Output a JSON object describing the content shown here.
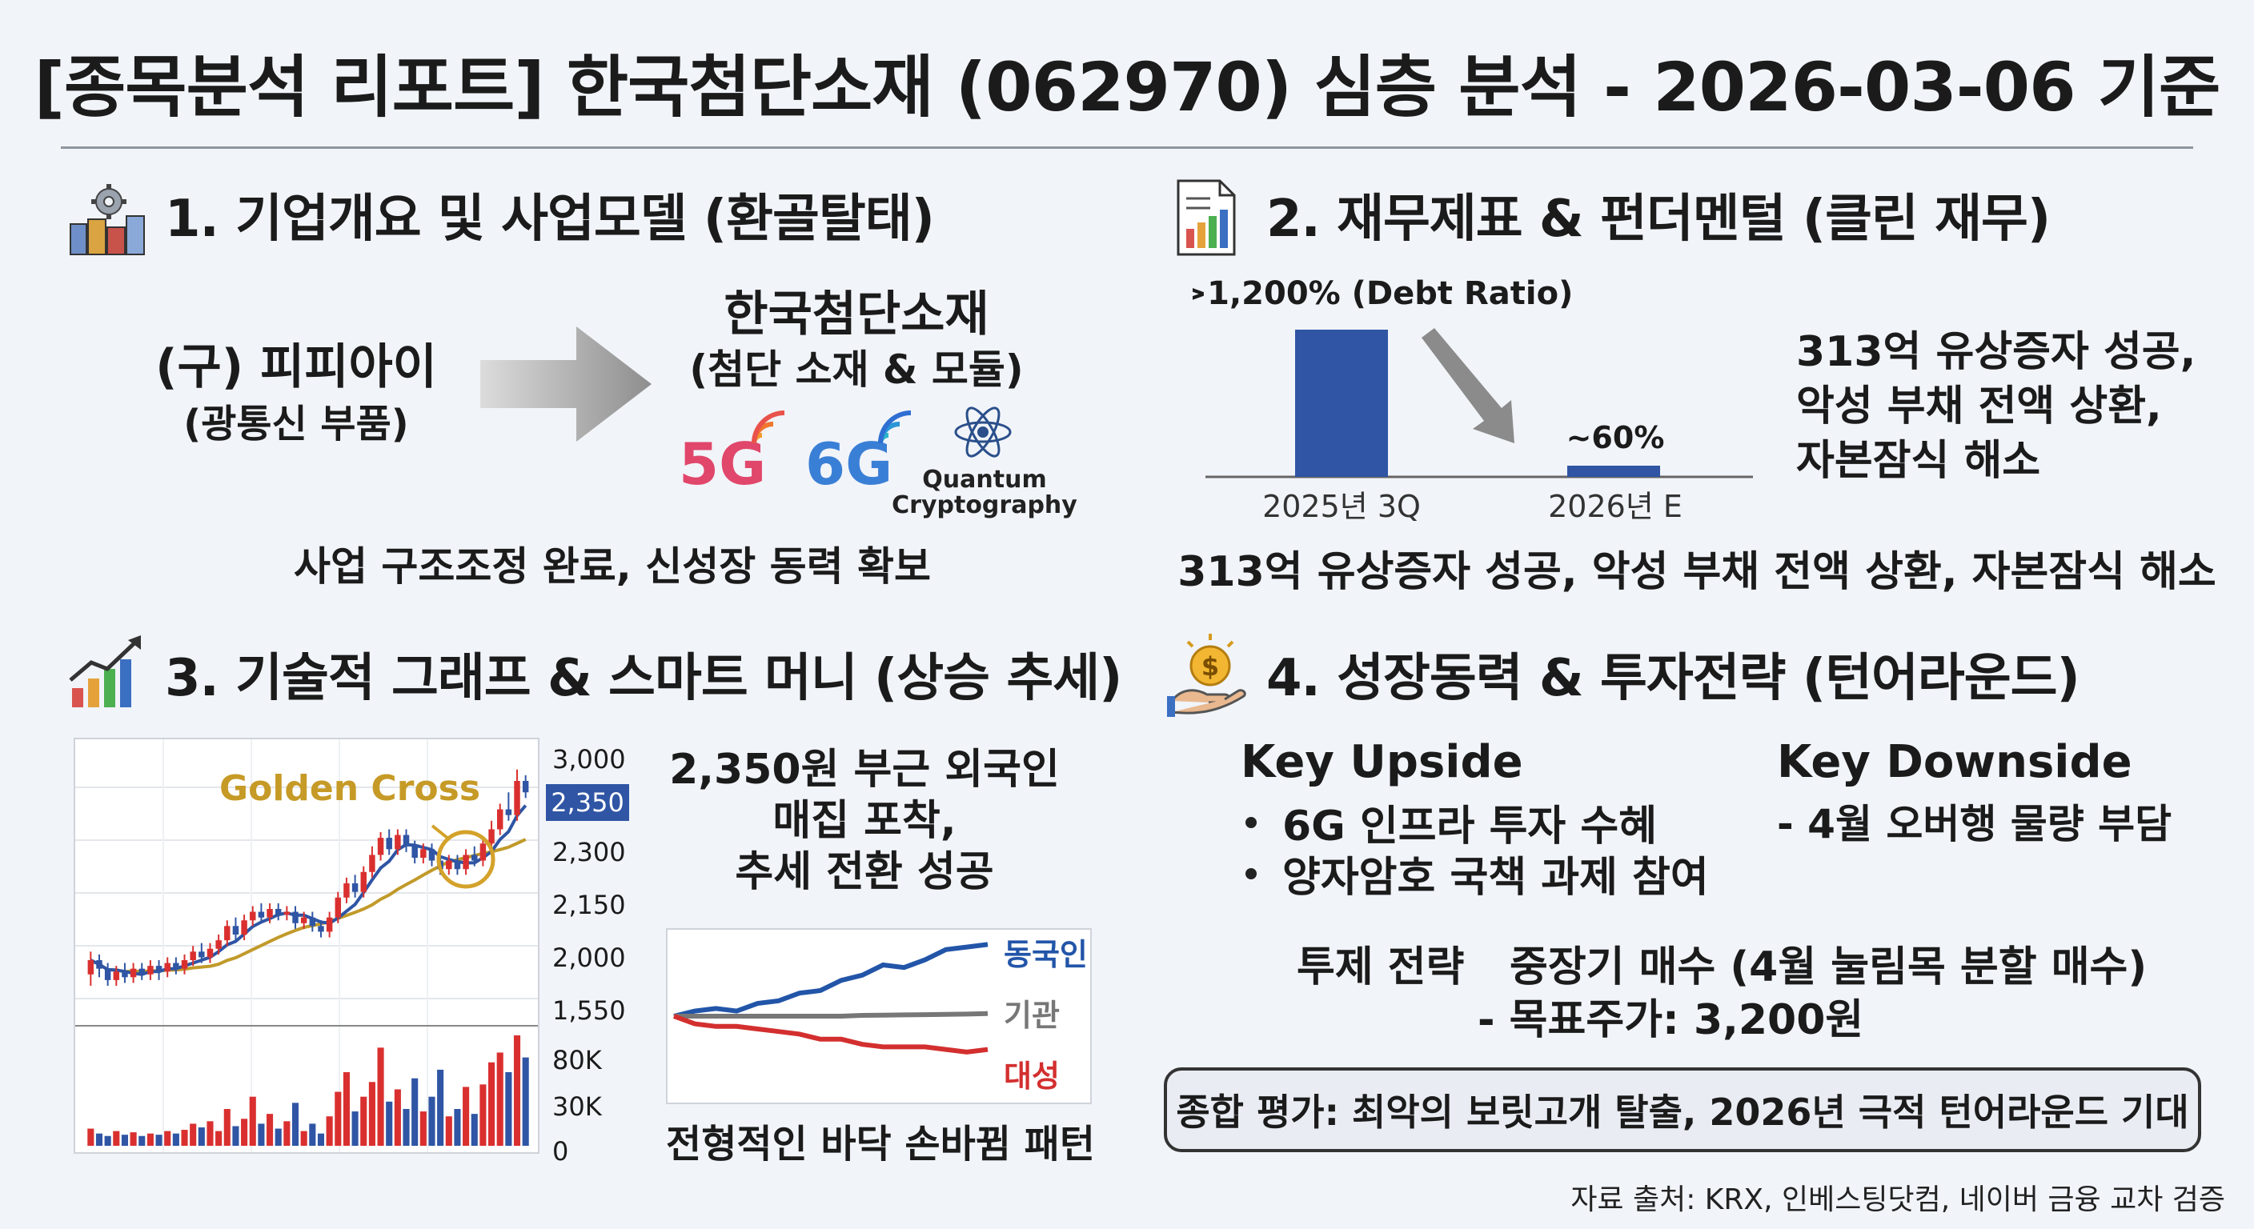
{
  "title": "[종목분석 리포트] 한국첨단소재 (062970) 심층 분석 - 2026-03-06 기준",
  "section1": {
    "title": "1. 기업개요 및 사업모델 (환골탈태)",
    "icon": "factory-gear-icon",
    "from_name": "(구) 피피아이",
    "from_desc": "(광통신 부품)",
    "to_name": "한국첨단소재",
    "to_desc": "(첨단 소재 & 모듈)",
    "logos": {
      "g5": "5G",
      "g6": "6G",
      "quantum_line1": "Quantum",
      "quantum_line2": "Cryptography"
    },
    "summary": "사업 구조조정 완료, 신성장 동력 확보"
  },
  "section2": {
    "title": "2. 재무제표 & 펀더멘털 (클린 재무)",
    "icon": "financial-report-icon",
    "chart_data": {
      "type": "bar",
      "categories": [
        "2025년 3Q",
        "2026년 E"
      ],
      "values": [
        1200,
        60
      ],
      "value_labels": [
        ">1,200% (Debt Ratio)",
        "~60%"
      ],
      "bar_color": "#2f55a4"
    },
    "side_text": [
      "313억 유상증자 성공,",
      "악성 부채 전액 상환,",
      "자본잠식 해소"
    ],
    "summary": "313억 유상증자 성공, 악성 부채 전액 상환, 자본잠식 해소"
  },
  "section3": {
    "title": "3. 기술적 그래프 & 스마트 머니 (상승 추세)",
    "icon": "rising-chart-icon",
    "chart_data": {
      "type": "candlestick",
      "annotation": "Golden Cross",
      "price_ticks": [
        "3,000",
        "2,350",
        "2,300",
        "2,150",
        "2,000",
        "1,550"
      ],
      "highlight_price": "2,350",
      "volume_ticks": [
        "80K",
        "30K",
        "0"
      ],
      "candles": [
        [
          1880,
          1930,
          1840,
          1960
        ],
        [
          1930,
          1900,
          1870,
          1950
        ],
        [
          1900,
          1860,
          1840,
          1920
        ],
        [
          1860,
          1890,
          1840,
          1910
        ],
        [
          1890,
          1870,
          1850,
          1920
        ],
        [
          1870,
          1900,
          1850,
          1920
        ],
        [
          1900,
          1880,
          1860,
          1920
        ],
        [
          1880,
          1910,
          1860,
          1930
        ],
        [
          1910,
          1890,
          1860,
          1930
        ],
        [
          1890,
          1920,
          1870,
          1940
        ],
        [
          1920,
          1900,
          1880,
          1940
        ],
        [
          1900,
          1930,
          1880,
          1950
        ],
        [
          1930,
          1960,
          1910,
          1980
        ],
        [
          1960,
          1940,
          1920,
          1990
        ],
        [
          1940,
          1970,
          1920,
          1990
        ],
        [
          1970,
          2000,
          1950,
          2020
        ],
        [
          2000,
          2050,
          1980,
          2070
        ],
        [
          2050,
          2020,
          2000,
          2080
        ],
        [
          2020,
          2070,
          2000,
          2090
        ],
        [
          2070,
          2100,
          2050,
          2120
        ],
        [
          2100,
          2080,
          2060,
          2130
        ],
        [
          2080,
          2110,
          2060,
          2130
        ],
        [
          2110,
          2090,
          2070,
          2130
        ],
        [
          2090,
          2100,
          2070,
          2120
        ],
        [
          2100,
          2060,
          2040,
          2120
        ],
        [
          2060,
          2080,
          2040,
          2100
        ],
        [
          2080,
          2050,
          2030,
          2100
        ],
        [
          2050,
          2030,
          2010,
          2070
        ],
        [
          2030,
          2080,
          2010,
          2100
        ],
        [
          2080,
          2150,
          2060,
          2170
        ],
        [
          2150,
          2200,
          2130,
          2220
        ],
        [
          2200,
          2170,
          2150,
          2230
        ],
        [
          2170,
          2240,
          2150,
          2260
        ],
        [
          2240,
          2300,
          2220,
          2330
        ],
        [
          2300,
          2360,
          2280,
          2380
        ],
        [
          2360,
          2320,
          2300,
          2390
        ],
        [
          2320,
          2370,
          2300,
          2390
        ],
        [
          2370,
          2330,
          2310,
          2390
        ],
        [
          2330,
          2290,
          2270,
          2350
        ],
        [
          2290,
          2320,
          2270,
          2340
        ],
        [
          2320,
          2280,
          2260,
          2340
        ],
        [
          2280,
          2250,
          2230,
          2300
        ],
        [
          2250,
          2280,
          2230,
          2300
        ],
        [
          2280,
          2250,
          2230,
          2300
        ],
        [
          2250,
          2300,
          2230,
          2320
        ],
        [
          2300,
          2280,
          2260,
          2330
        ],
        [
          2280,
          2340,
          2260,
          2360
        ],
        [
          2340,
          2390,
          2320,
          2420
        ],
        [
          2390,
          2460,
          2370,
          2480
        ],
        [
          2460,
          2440,
          2420,
          2520
        ],
        [
          2440,
          2560,
          2420,
          2600
        ],
        [
          2560,
          2520,
          2500,
          2580
        ]
      ],
      "volumes": [
        14,
        10,
        8,
        12,
        9,
        11,
        8,
        10,
        9,
        12,
        10,
        13,
        18,
        15,
        20,
        12,
        30,
        16,
        22,
        40,
        18,
        26,
        14,
        20,
        35,
        12,
        18,
        10,
        24,
        44,
        60,
        28,
        40,
        52,
        80,
        36,
        46,
        30,
        55,
        28,
        40,
        62,
        24,
        30,
        48,
        26,
        50,
        68,
        76,
        60,
        90,
        72
      ]
    },
    "note": [
      "2,350원 부근 외국인",
      "매집 포착,",
      "추세 전환 성공"
    ],
    "flow_chart": {
      "type": "line",
      "series": [
        {
          "name": "동국인",
          "color": "#2255a8",
          "values": [
            0,
            2,
            3,
            2,
            5,
            6,
            9,
            10,
            14,
            16,
            20,
            19,
            22,
            26,
            27,
            28
          ]
        },
        {
          "name": "기관",
          "color": "#777777",
          "values": [
            0,
            0,
            0,
            0,
            0,
            0,
            0,
            0,
            0,
            0.3,
            0.4,
            0.5,
            0.6,
            0.7,
            0.8,
            1
          ]
        },
        {
          "name": "대성",
          "color": "#d32f2f",
          "values": [
            0,
            -3,
            -4,
            -4,
            -5,
            -6,
            -7,
            -9,
            -9,
            -11,
            -12,
            -12,
            -12,
            -13,
            -14,
            -13
          ]
        }
      ]
    },
    "caption": "전형적인 바닥 손바뀜 패턴"
  },
  "section4": {
    "title": "4. 성장동력 & 투자전략 (턴어라운드)",
    "icon": "money-hand-icon",
    "upside_title": "Key Upside",
    "upside": [
      "6G 인프라 투자 수혜",
      "양자암호 국책 과제 참여"
    ],
    "downside_title": "Key Downside",
    "downside": [
      "- 4월 오버행 물량 부담"
    ],
    "strategy_label": "투제 전략",
    "strategy": "중장기 매수 (4월 눌림목 분할 매수)",
    "target": "- 목표주가: 3,200원",
    "summary": "종합 평가: 최악의 보릿고개 탈출, 2026년 극적 턴어라운드 기대"
  },
  "source": "자료 출처: KRX, 인베스팅닷컴, 네이버 금융 교차 검증"
}
